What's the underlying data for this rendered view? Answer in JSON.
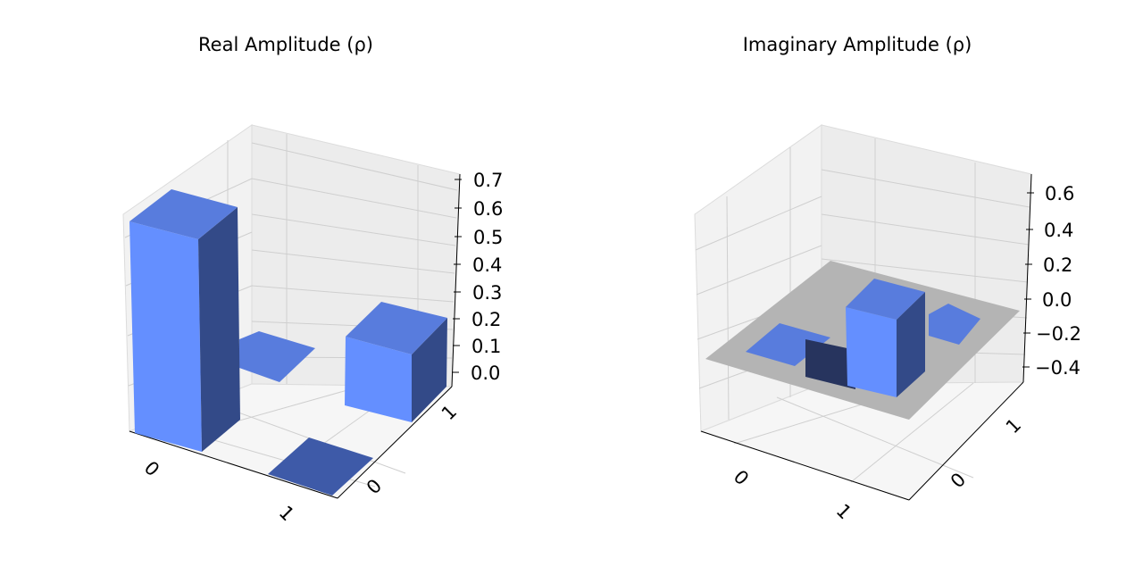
{
  "chart_data": [
    {
      "type": "bar3d",
      "title": "Real Amplitude (ρ)",
      "row_tick_labels": [
        "0",
        "1"
      ],
      "col_tick_labels": [
        "0",
        "1"
      ],
      "z_tick_labels": [
        "0.0",
        "0.1",
        "0.2",
        "0.3",
        "0.4",
        "0.5",
        "0.6",
        "0.7"
      ],
      "zlim": [
        0,
        0.7
      ],
      "bars": [
        {
          "row": "0",
          "col": "0",
          "value": 0.6
        },
        {
          "row": "0",
          "col": "1",
          "value": 0.0
        },
        {
          "row": "1",
          "col": "0",
          "value": 0.0
        },
        {
          "row": "1",
          "col": "1",
          "value": 0.25
        }
      ]
    },
    {
      "type": "bar3d",
      "title": "Imaginary Amplitude (ρ)",
      "row_tick_labels": [
        "0",
        "1"
      ],
      "col_tick_labels": [
        "0",
        "1"
      ],
      "z_tick_labels": [
        "0.6",
        "0.4",
        "0.2",
        "0.0",
        "−0.2",
        "−0.4"
      ],
      "zlim": [
        -0.5,
        0.65
      ],
      "bars": [
        {
          "row": "0",
          "col": "0",
          "value": 0.0
        },
        {
          "row": "0",
          "col": "1",
          "value": 0.0
        },
        {
          "row": "1",
          "col": "0",
          "value": 0.0
        },
        {
          "row": "1",
          "col": "1",
          "value": 0.0
        },
        {
          "row": "0",
          "col": "1",
          "value": -0.4
        },
        {
          "row": "1",
          "col": "0",
          "value": 0.4
        }
      ]
    }
  ],
  "colors": {
    "bar_front": "#648fff",
    "bar_top": "#587cdd",
    "bar_side": "#334a88",
    "bar_dark_side": "#27345e",
    "zero_plane": "#b4b4b4",
    "pane": "#f2f2f2",
    "grid": "#d0d0d0"
  }
}
